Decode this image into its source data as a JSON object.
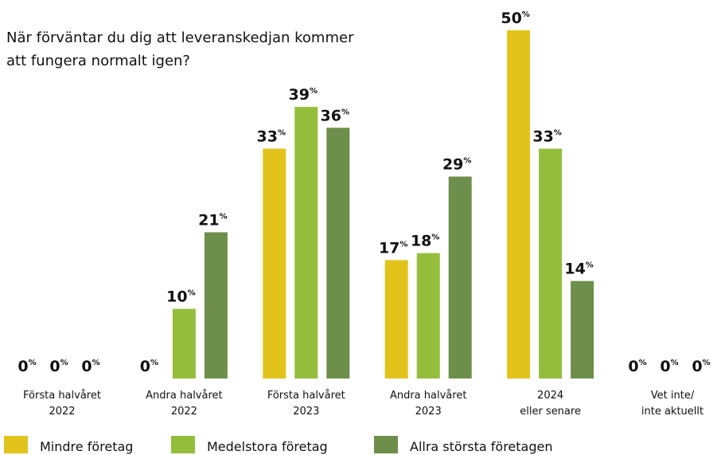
{
  "chart_data": {
    "type": "bar",
    "title": [
      "När förväntar du dig att leveranskedjan kommer",
      "att fungera normalt igen?"
    ],
    "categories": [
      [
        "Första halvåret",
        "2022"
      ],
      [
        "Andra halvåret",
        "2022"
      ],
      [
        "Första halvåret",
        "2023"
      ],
      [
        "Andra halvåret",
        "2023"
      ],
      [
        "2024",
        "eller senare"
      ],
      [
        "Vet inte/",
        "inte aktuellt"
      ]
    ],
    "series": [
      {
        "name": "Mindre företag",
        "color": "#e2c31c",
        "values": [
          0,
          0,
          33,
          17,
          50,
          0
        ]
      },
      {
        "name": "Medelstora företag",
        "color": "#95bd3c",
        "values": [
          0,
          10,
          39,
          18,
          33,
          0
        ]
      },
      {
        "name": "Allra största företagen",
        "color": "#6e8f4b",
        "values": [
          0,
          21,
          36,
          29,
          14,
          0
        ]
      }
    ],
    "value_unit": "%",
    "ylim": [
      0,
      50
    ]
  }
}
